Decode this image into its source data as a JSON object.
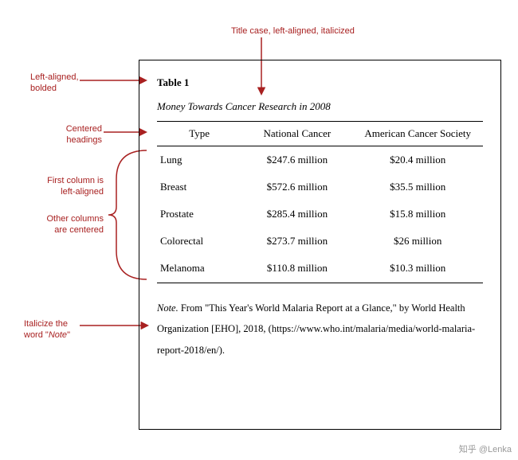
{
  "colors": {
    "annotation": "#a82020",
    "text": "#000000",
    "border": "#000000",
    "background": "#ffffff"
  },
  "annotations": {
    "top": "Title case, left-aligned, italicized",
    "tableNum": "Left-aligned,\nbolded",
    "headings": "Centered\nheadings",
    "firstCol": "First column is\nleft-aligned",
    "otherCols": "Other columns\nare centered",
    "noteLabel": "Italicize the\nword \"",
    "noteWord": "Note",
    "noteClose": "\""
  },
  "table": {
    "number": "Table 1",
    "title": "Money Towards Cancer Research in 2008",
    "columns": [
      "Type",
      "National Cancer",
      "American Cancer Society"
    ],
    "rows": [
      [
        "Lung",
        "$247.6 million",
        "$20.4 million"
      ],
      [
        "Breast",
        "$572.6 million",
        "$35.5 million"
      ],
      [
        "Prostate",
        "$285.4 million",
        "$15.8 million"
      ],
      [
        "Colorectal",
        "$273.7 million",
        "$26 million"
      ],
      [
        "Melanoma",
        "$110.8 million",
        "$10.3 million"
      ]
    ],
    "note": {
      "label": "Note.",
      "text": " From \"This Year's World Malaria Report at a Glance,\" by World Health Organization [EHO], 2018, (https://www.who.int/malaria/media/world-malaria-report-2018/en/)."
    },
    "col_widths": [
      "26%",
      "34%",
      "40%"
    ]
  },
  "watermark": "知乎 @Lenka"
}
